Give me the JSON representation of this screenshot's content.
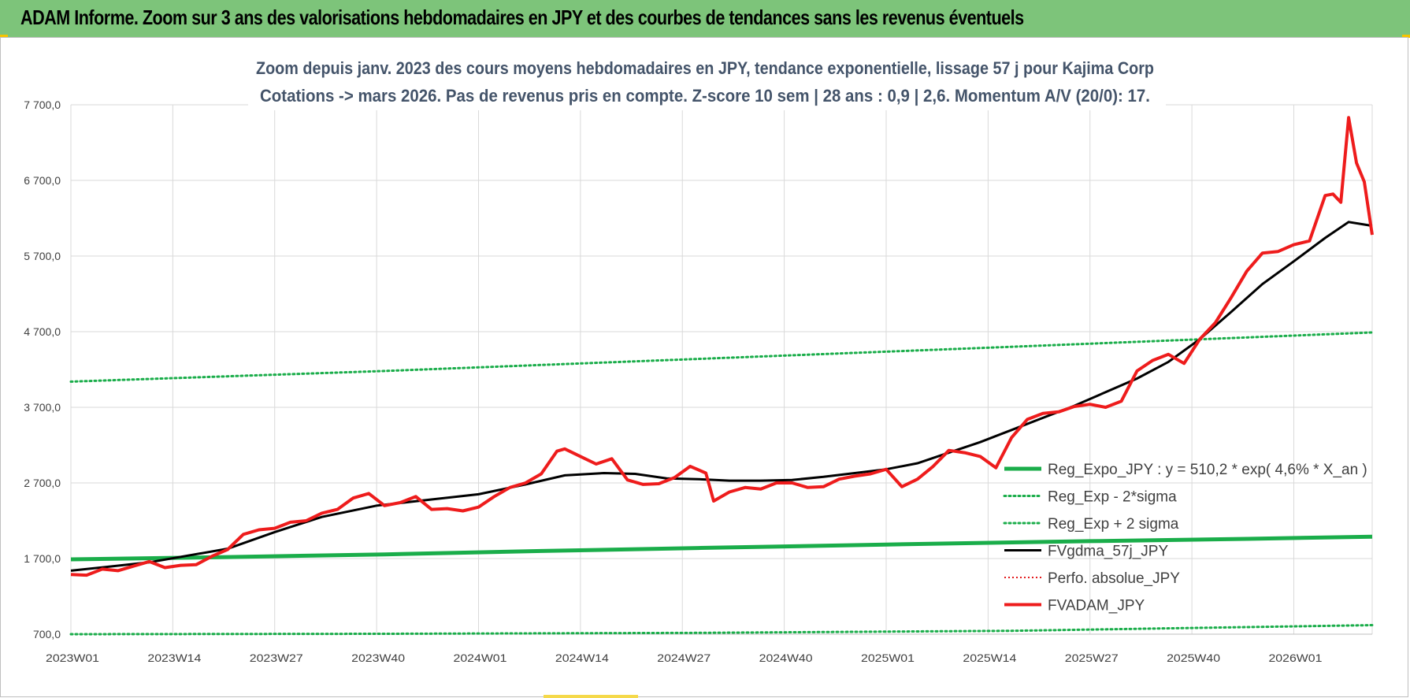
{
  "header": {
    "title": "ADAM Informe. Zoom sur 3 ans des valorisations hebdomadaires en JPY et des courbes de tendances sans les revenus éventuels"
  },
  "colors": {
    "header_bg": "#7dc47a",
    "reg_expo": "#1aad4a",
    "sigma": "#1aad4a",
    "fvgdma": "#000000",
    "perfo": "#e31a1c",
    "fvadam": "#ee1c1c",
    "grid": "#d9d9d9"
  },
  "chart_data": {
    "type": "line",
    "title_lines": [
      "Zoom depuis janv. 2023 des cours moyens hebdomadaires en JPY, tendance exponentielle, lissage 57 j pour Kajima Corp",
      "Cotations -> mars 2026. Pas de revenus pris en compte. Z-score 10 sem | 28 ans : 0,9 | 2,6. Momentum A/V (20/0): 17."
    ],
    "ylim": [
      700,
      7700
    ],
    "yticks": [
      700,
      1700,
      2700,
      3700,
      4700,
      5700,
      6700,
      7700
    ],
    "ytick_labels": [
      "700,0",
      "1 700,0",
      "2 700,0",
      "3 700,0",
      "4 700,0",
      "5 700,0",
      "6 700,0",
      "7 700,0"
    ],
    "n_weeks": 167,
    "xtick_labels": [
      "2023W01",
      "2023W14",
      "2023W27",
      "2023W40",
      "2024W01",
      "2024W14",
      "2024W27",
      "2024W40",
      "2025W01",
      "2025W14",
      "2025W27",
      "2025W40",
      "2026W01"
    ],
    "xtick_index": [
      0,
      13,
      26,
      39,
      52,
      65,
      78,
      91,
      104,
      117,
      130,
      143,
      156
    ],
    "grid": true,
    "legend_position": "right",
    "series": [
      {
        "name": "Reg_Expo_JPY : y = 510,2 * exp( 4,6% *  X_an )",
        "style": "thick",
        "points": [
          [
            0,
            1690
          ],
          [
            20,
            1720
          ],
          [
            40,
            1755
          ],
          [
            60,
            1800
          ],
          [
            80,
            1840
          ],
          [
            104,
            1885
          ],
          [
            130,
            1930
          ],
          [
            150,
            1960
          ],
          [
            166,
            1990
          ]
        ]
      },
      {
        "name": "Reg_Exp - 2*sigma",
        "style": "dotted",
        "points": [
          [
            0,
            700
          ],
          [
            40,
            705
          ],
          [
            80,
            718
          ],
          [
            120,
            745
          ],
          [
            166,
            820
          ]
        ]
      },
      {
        "name": "Reg_Exp + 2 sigma",
        "style": "dotted",
        "points": [
          [
            0,
            4040
          ],
          [
            40,
            4180
          ],
          [
            80,
            4340
          ],
          [
            120,
            4500
          ],
          [
            166,
            4690
          ]
        ]
      },
      {
        "name": "FVgdma_57j_JPY",
        "style": "solid",
        "points": [
          [
            0,
            1540
          ],
          [
            10,
            1650
          ],
          [
            20,
            1830
          ],
          [
            26,
            2050
          ],
          [
            32,
            2250
          ],
          [
            39,
            2400
          ],
          [
            45,
            2470
          ],
          [
            52,
            2550
          ],
          [
            58,
            2680
          ],
          [
            63,
            2800
          ],
          [
            68,
            2830
          ],
          [
            72,
            2820
          ],
          [
            76,
            2760
          ],
          [
            80,
            2750
          ],
          [
            84,
            2730
          ],
          [
            88,
            2730
          ],
          [
            92,
            2740
          ],
          [
            96,
            2780
          ],
          [
            100,
            2830
          ],
          [
            104,
            2880
          ],
          [
            108,
            2960
          ],
          [
            112,
            3100
          ],
          [
            116,
            3240
          ],
          [
            120,
            3400
          ],
          [
            124,
            3560
          ],
          [
            128,
            3720
          ],
          [
            132,
            3900
          ],
          [
            136,
            4080
          ],
          [
            140,
            4300
          ],
          [
            144,
            4600
          ],
          [
            148,
            4960
          ],
          [
            152,
            5330
          ],
          [
            156,
            5630
          ],
          [
            160,
            5940
          ],
          [
            163,
            6150
          ],
          [
            166,
            6100
          ]
        ]
      },
      {
        "name": "Perfo. absolue_JPY",
        "style": "dotted-red",
        "points": []
      },
      {
        "name": "FVADAM_JPY",
        "style": "solid-red",
        "points": [
          [
            0,
            1490
          ],
          [
            2,
            1480
          ],
          [
            4,
            1560
          ],
          [
            6,
            1540
          ],
          [
            8,
            1600
          ],
          [
            10,
            1660
          ],
          [
            12,
            1580
          ],
          [
            14,
            1610
          ],
          [
            16,
            1620
          ],
          [
            18,
            1730
          ],
          [
            20,
            1820
          ],
          [
            22,
            2020
          ],
          [
            24,
            2080
          ],
          [
            26,
            2100
          ],
          [
            28,
            2180
          ],
          [
            30,
            2200
          ],
          [
            32,
            2300
          ],
          [
            34,
            2350
          ],
          [
            36,
            2500
          ],
          [
            38,
            2560
          ],
          [
            40,
            2400
          ],
          [
            42,
            2440
          ],
          [
            44,
            2520
          ],
          [
            46,
            2350
          ],
          [
            48,
            2360
          ],
          [
            50,
            2330
          ],
          [
            52,
            2380
          ],
          [
            54,
            2520
          ],
          [
            56,
            2640
          ],
          [
            58,
            2700
          ],
          [
            60,
            2820
          ],
          [
            62,
            3120
          ],
          [
            63,
            3150
          ],
          [
            65,
            3050
          ],
          [
            67,
            2950
          ],
          [
            69,
            3020
          ],
          [
            71,
            2740
          ],
          [
            73,
            2680
          ],
          [
            75,
            2690
          ],
          [
            77,
            2770
          ],
          [
            79,
            2920
          ],
          [
            81,
            2830
          ],
          [
            82,
            2460
          ],
          [
            84,
            2580
          ],
          [
            86,
            2640
          ],
          [
            88,
            2620
          ],
          [
            90,
            2700
          ],
          [
            92,
            2700
          ],
          [
            94,
            2640
          ],
          [
            96,
            2650
          ],
          [
            98,
            2750
          ],
          [
            100,
            2790
          ],
          [
            102,
            2820
          ],
          [
            104,
            2880
          ],
          [
            106,
            2650
          ],
          [
            108,
            2750
          ],
          [
            110,
            2920
          ],
          [
            112,
            3130
          ],
          [
            114,
            3100
          ],
          [
            116,
            3050
          ],
          [
            118,
            2900
          ],
          [
            120,
            3300
          ],
          [
            122,
            3540
          ],
          [
            124,
            3620
          ],
          [
            126,
            3640
          ],
          [
            128,
            3710
          ],
          [
            130,
            3740
          ],
          [
            132,
            3700
          ],
          [
            134,
            3780
          ],
          [
            136,
            4180
          ],
          [
            138,
            4320
          ],
          [
            140,
            4400
          ],
          [
            142,
            4280
          ],
          [
            144,
            4600
          ],
          [
            146,
            4820
          ],
          [
            148,
            5150
          ],
          [
            150,
            5500
          ],
          [
            152,
            5740
          ],
          [
            154,
            5760
          ],
          [
            156,
            5850
          ],
          [
            158,
            5900
          ],
          [
            160,
            6500
          ],
          [
            161,
            6520
          ],
          [
            162,
            6410
          ],
          [
            163,
            7530
          ],
          [
            164,
            6930
          ],
          [
            165,
            6680
          ],
          [
            166,
            5980
          ]
        ]
      }
    ]
  }
}
